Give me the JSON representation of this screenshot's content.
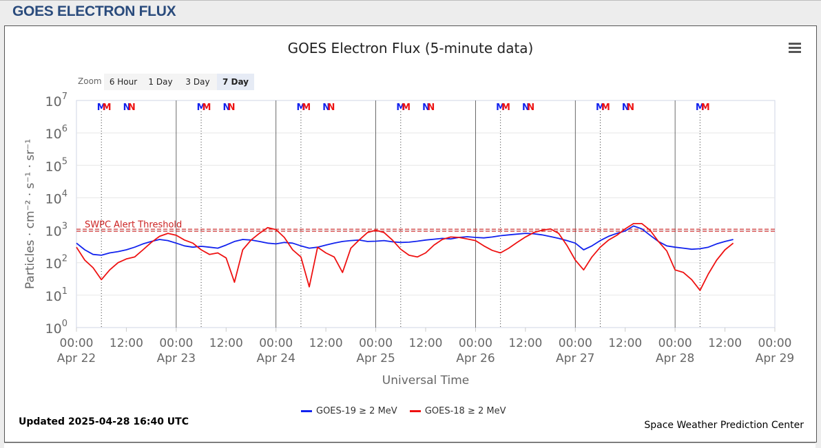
{
  "header": {
    "title": "GOES ELECTRON FLUX"
  },
  "menu": {
    "icon": "hamburger-menu-icon"
  },
  "zoom": {
    "label": "Zoom",
    "options": [
      "6 Hour",
      "1 Day",
      "3 Day",
      "7 Day"
    ],
    "selected": "7 Day"
  },
  "footer": {
    "updated": "Updated 2025-04-28 16:40 UTC",
    "credit": "Space Weather Prediction Center"
  },
  "colors": {
    "goes19": "#1122ee",
    "goes18": "#ee1111",
    "threshold": "#cc2222",
    "axis_text": "#666666"
  },
  "chart_data": {
    "type": "line",
    "title": "GOES Electron Flux (5-minute data)",
    "xlabel": "Universal Time",
    "ylabel": "Particles · cm⁻² · s⁻¹ · sr⁻¹",
    "yscale": "log",
    "ylim": [
      1,
      10000000
    ],
    "xlim": [
      "2025-04-22 00:00",
      "2025-04-29 00:00"
    ],
    "grid": true,
    "legend_position": "bottom-center",
    "x_ticks": [
      {
        "time": "00:00",
        "date": "Apr 22"
      },
      {
        "time": "12:00",
        "date": ""
      },
      {
        "time": "00:00",
        "date": "Apr 23"
      },
      {
        "time": "12:00",
        "date": ""
      },
      {
        "time": "00:00",
        "date": "Apr 24"
      },
      {
        "time": "12:00",
        "date": ""
      },
      {
        "time": "00:00",
        "date": "Apr 25"
      },
      {
        "time": "12:00",
        "date": ""
      },
      {
        "time": "00:00",
        "date": "Apr 26"
      },
      {
        "time": "12:00",
        "date": ""
      },
      {
        "time": "00:00",
        "date": "Apr 27"
      },
      {
        "time": "12:00",
        "date": ""
      },
      {
        "time": "00:00",
        "date": "Apr 28"
      },
      {
        "time": "12:00",
        "date": ""
      },
      {
        "time": "00:00",
        "date": "Apr 29"
      }
    ],
    "y_ticks": [
      {
        "base": "10",
        "exp": "0"
      },
      {
        "base": "10",
        "exp": "1"
      },
      {
        "base": "10",
        "exp": "2"
      },
      {
        "base": "10",
        "exp": "3"
      },
      {
        "base": "10",
        "exp": "4"
      },
      {
        "base": "10",
        "exp": "5"
      },
      {
        "base": "10",
        "exp": "6"
      },
      {
        "base": "10",
        "exp": "7"
      }
    ],
    "threshold": {
      "label": "SWPC Alert Threshold",
      "value": 1000
    },
    "markers": [
      {
        "label": "M",
        "hour": 6.0,
        "series": "GOES-19"
      },
      {
        "label": "M",
        "hour": 7.3,
        "series": "GOES-18"
      },
      {
        "label": "N",
        "hour": 12.1,
        "series": "GOES-19"
      },
      {
        "label": "N",
        "hour": 13.3,
        "series": "GOES-18"
      },
      {
        "label": "M",
        "hour": 30.0,
        "series": "GOES-19"
      },
      {
        "label": "M",
        "hour": 31.3,
        "series": "GOES-18"
      },
      {
        "label": "N",
        "hour": 36.1,
        "series": "GOES-19"
      },
      {
        "label": "N",
        "hour": 37.3,
        "series": "GOES-18"
      },
      {
        "label": "M",
        "hour": 54.0,
        "series": "GOES-19"
      },
      {
        "label": "M",
        "hour": 55.3,
        "series": "GOES-18"
      },
      {
        "label": "N",
        "hour": 60.1,
        "series": "GOES-19"
      },
      {
        "label": "N",
        "hour": 61.3,
        "series": "GOES-18"
      },
      {
        "label": "M",
        "hour": 78.0,
        "series": "GOES-19"
      },
      {
        "label": "M",
        "hour": 79.3,
        "series": "GOES-18"
      },
      {
        "label": "N",
        "hour": 84.1,
        "series": "GOES-19"
      },
      {
        "label": "N",
        "hour": 85.3,
        "series": "GOES-18"
      },
      {
        "label": "M",
        "hour": 102.0,
        "series": "GOES-19"
      },
      {
        "label": "M",
        "hour": 103.3,
        "series": "GOES-18"
      },
      {
        "label": "N",
        "hour": 108.1,
        "series": "GOES-19"
      },
      {
        "label": "N",
        "hour": 109.3,
        "series": "GOES-18"
      },
      {
        "label": "M",
        "hour": 126.0,
        "series": "GOES-19"
      },
      {
        "label": "M",
        "hour": 127.3,
        "series": "GOES-18"
      },
      {
        "label": "N",
        "hour": 132.1,
        "series": "GOES-19"
      },
      {
        "label": "N",
        "hour": 133.3,
        "series": "GOES-18"
      },
      {
        "label": "M",
        "hour": 150.0,
        "series": "GOES-19"
      },
      {
        "label": "M",
        "hour": 151.3,
        "series": "GOES-18"
      }
    ],
    "series": [
      {
        "name": "GOES-19 ≥ 2 MeV",
        "color": "#1122ee",
        "x_hours": [
          0,
          2,
          4,
          6,
          8,
          10,
          12,
          14,
          16,
          18,
          20,
          22,
          24,
          26,
          28,
          30,
          32,
          34,
          36,
          38,
          40,
          42,
          44,
          46,
          48,
          50,
          52,
          54,
          56,
          58,
          60,
          62,
          64,
          66,
          68,
          70,
          72,
          74,
          76,
          78,
          80,
          82,
          84,
          86,
          88,
          90,
          92,
          94,
          96,
          98,
          100,
          102,
          104,
          106,
          108,
          110,
          112,
          114,
          116,
          118,
          120,
          122,
          124,
          126,
          128,
          130,
          132,
          134,
          136,
          138,
          140,
          142,
          144,
          146,
          148,
          150,
          152,
          154,
          156,
          158
        ],
        "values": [
          400,
          250,
          180,
          170,
          200,
          220,
          250,
          300,
          380,
          450,
          520,
          480,
          400,
          330,
          300,
          320,
          300,
          280,
          350,
          450,
          520,
          500,
          450,
          400,
          380,
          420,
          400,
          330,
          280,
          300,
          350,
          400,
          450,
          480,
          500,
          450,
          460,
          480,
          440,
          420,
          430,
          460,
          500,
          530,
          560,
          540,
          600,
          630,
          600,
          580,
          620,
          680,
          720,
          760,
          800,
          780,
          720,
          640,
          560,
          480,
          400,
          250,
          330,
          480,
          650,
          800,
          950,
          1350,
          1100,
          700,
          450,
          330,
          300,
          280,
          260,
          270,
          300,
          380,
          450,
          520
        ]
      },
      {
        "name": "GOES-18 ≥ 2 MeV",
        "color": "#ee1111",
        "x_hours": [
          0,
          2,
          4,
          6,
          8,
          10,
          12,
          14,
          16,
          18,
          20,
          22,
          24,
          26,
          28,
          30,
          32,
          34,
          36,
          38,
          40,
          42,
          44,
          46,
          48,
          50,
          52,
          54,
          56,
          58,
          60,
          62,
          64,
          66,
          68,
          70,
          72,
          74,
          76,
          78,
          80,
          82,
          84,
          86,
          88,
          90,
          92,
          94,
          96,
          98,
          100,
          102,
          104,
          106,
          108,
          110,
          112,
          114,
          116,
          118,
          120,
          122,
          124,
          126,
          128,
          130,
          132,
          134,
          136,
          138,
          140,
          142,
          144,
          146,
          148,
          150,
          152,
          154,
          156,
          158
        ],
        "values": [
          300,
          120,
          70,
          30,
          60,
          100,
          130,
          150,
          250,
          420,
          650,
          800,
          700,
          500,
          400,
          250,
          180,
          200,
          140,
          25,
          250,
          500,
          800,
          1200,
          1050,
          600,
          250,
          150,
          18,
          300,
          200,
          150,
          50,
          280,
          500,
          850,
          1000,
          850,
          500,
          260,
          170,
          150,
          200,
          350,
          520,
          620,
          600,
          540,
          480,
          330,
          240,
          200,
          280,
          420,
          620,
          850,
          1000,
          1100,
          800,
          340,
          120,
          60,
          150,
          300,
          500,
          700,
          1100,
          1600,
          1600,
          1000,
          450,
          230,
          60,
          50,
          30,
          14,
          45,
          120,
          250,
          400
        ]
      }
    ]
  }
}
